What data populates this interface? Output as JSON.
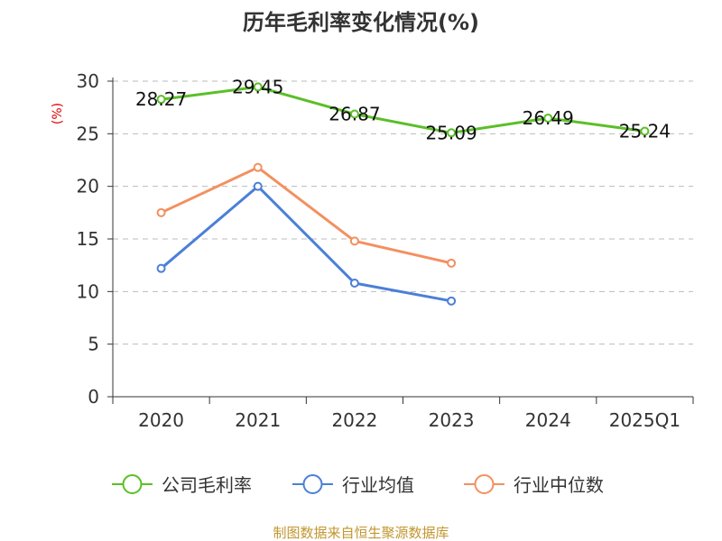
{
  "chart_data": {
    "type": "line",
    "title": "历年毛利率变化情况(%)",
    "ylabel": "(%)",
    "ylim": [
      0,
      30
    ],
    "yticks": [
      "0",
      "5",
      "10",
      "15",
      "20",
      "25",
      "30"
    ],
    "categories": [
      "2020",
      "2021",
      "2022",
      "2023",
      "2024",
      "2025Q1"
    ],
    "grid": true,
    "legend_position": "bottom",
    "series": [
      {
        "name": "公司毛利率",
        "color": "#5bbf28",
        "values": [
          28.27,
          29.45,
          26.87,
          25.09,
          26.49,
          25.24
        ],
        "labels": [
          "28.27",
          "29.45",
          "26.87",
          "25.09",
          "26.49",
          "25.24"
        ]
      },
      {
        "name": "行业均值",
        "color": "#4b7fd8",
        "values": [
          12.2,
          20.0,
          10.8,
          9.1,
          null,
          null
        ]
      },
      {
        "name": "行业中位数",
        "color": "#f39060",
        "values": [
          17.5,
          21.8,
          14.8,
          12.7,
          null,
          null
        ]
      }
    ]
  },
  "footer": {
    "source": "制图数据来自恒生聚源数据库"
  }
}
